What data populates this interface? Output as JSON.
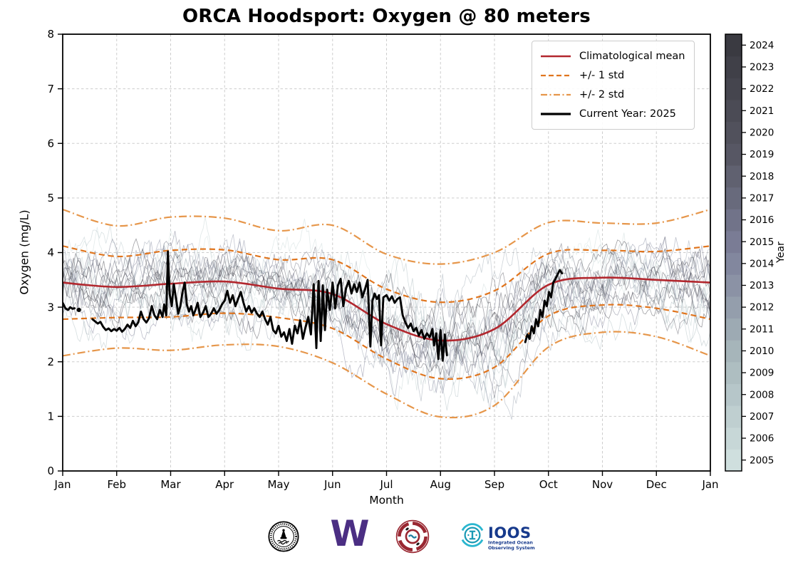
{
  "chart_data": {
    "type": "line",
    "title": "ORCA Hoodsport: Oxygen @ 80 meters",
    "xlabel": "Month",
    "ylabel": "Oxygen (mg/L)",
    "ylim": [
      0,
      8
    ],
    "yticks": [
      0,
      1,
      2,
      3,
      4,
      5,
      6,
      7,
      8
    ],
    "xtick_labels": [
      "Jan",
      "Feb",
      "Mar",
      "Apr",
      "May",
      "Jun",
      "Jul",
      "Aug",
      "Sep",
      "Oct",
      "Nov",
      "Dec",
      "Jan"
    ],
    "grid": true,
    "legend_entries": [
      {
        "label": "Climatological mean",
        "style": "solid",
        "color": "#B2272E",
        "width": 2.6
      },
      {
        "label": "+/- 1 std",
        "style": "dashed",
        "color": "#E0751E",
        "width": 2.2
      },
      {
        "label": "+/- 2 std",
        "style": "dashdot",
        "color": "#E6964A",
        "width": 2.2
      },
      {
        "label": "Current Year: 2025",
        "style": "solid",
        "color": "#000000",
        "width": 3.2
      }
    ],
    "climatology": {
      "months": [
        0,
        1,
        2,
        3,
        4,
        5,
        6,
        7,
        8,
        9,
        10,
        11,
        12
      ],
      "mean": [
        3.45,
        3.37,
        3.43,
        3.47,
        3.34,
        3.24,
        2.69,
        2.39,
        2.6,
        3.41,
        3.54,
        3.5,
        3.45
      ],
      "std": [
        0.67,
        0.56,
        0.61,
        0.58,
        0.53,
        0.63,
        0.64,
        0.7,
        0.7,
        0.57,
        0.5,
        0.52,
        0.67
      ]
    },
    "current_year": {
      "label": "Current Year: 2025",
      "color": "#000000",
      "isolated_points": [
        [
          0.3,
          2.95
        ]
      ],
      "segments": [
        [
          [
            0.0,
            3.08
          ],
          [
            0.05,
            2.98
          ],
          [
            0.1,
            2.95
          ],
          [
            0.14,
            3.0
          ],
          [
            0.18,
            2.97
          ],
          [
            0.22,
            2.98
          ]
        ],
        [
          [
            0.55,
            2.78
          ],
          [
            0.6,
            2.74
          ],
          [
            0.65,
            2.7
          ],
          [
            0.7,
            2.73
          ],
          [
            0.75,
            2.64
          ],
          [
            0.8,
            2.58
          ],
          [
            0.85,
            2.61
          ],
          [
            0.9,
            2.56
          ],
          [
            0.95,
            2.6
          ],
          [
            1.0,
            2.57
          ],
          [
            1.05,
            2.62
          ],
          [
            1.1,
            2.55
          ],
          [
            1.15,
            2.6
          ],
          [
            1.2,
            2.68
          ],
          [
            1.25,
            2.62
          ],
          [
            1.3,
            2.75
          ],
          [
            1.35,
            2.65
          ],
          [
            1.4,
            2.72
          ],
          [
            1.45,
            2.92
          ],
          [
            1.5,
            2.78
          ],
          [
            1.55,
            2.72
          ],
          [
            1.6,
            2.8
          ],
          [
            1.65,
            3.02
          ],
          [
            1.7,
            2.85
          ],
          [
            1.75,
            2.78
          ],
          [
            1.8,
            2.95
          ],
          [
            1.85,
            2.82
          ],
          [
            1.88,
            3.05
          ],
          [
            1.92,
            2.85
          ],
          [
            1.95,
            4.02
          ],
          [
            1.98,
            3.25
          ],
          [
            2.02,
            3.02
          ],
          [
            2.06,
            3.42
          ],
          [
            2.1,
            3.15
          ],
          [
            2.14,
            2.88
          ],
          [
            2.18,
            3.02
          ],
          [
            2.22,
            3.28
          ],
          [
            2.26,
            3.45
          ],
          [
            2.3,
            3.05
          ],
          [
            2.34,
            2.92
          ],
          [
            2.38,
            3.02
          ],
          [
            2.42,
            2.85
          ],
          [
            2.46,
            2.95
          ],
          [
            2.5,
            3.08
          ],
          [
            2.55,
            2.82
          ],
          [
            2.6,
            2.9
          ],
          [
            2.65,
            3.02
          ],
          [
            2.7,
            2.82
          ],
          [
            2.75,
            2.88
          ],
          [
            2.8,
            2.98
          ],
          [
            2.85,
            2.88
          ],
          [
            2.9,
            2.95
          ],
          [
            2.95,
            3.05
          ],
          [
            3.0,
            3.12
          ],
          [
            3.05,
            3.3
          ],
          [
            3.1,
            3.08
          ],
          [
            3.15,
            3.22
          ],
          [
            3.2,
            3.02
          ],
          [
            3.25,
            3.15
          ],
          [
            3.3,
            3.28
          ],
          [
            3.35,
            3.08
          ],
          [
            3.4,
            2.92
          ],
          [
            3.45,
            3.02
          ],
          [
            3.5,
            2.9
          ],
          [
            3.55,
            2.98
          ],
          [
            3.6,
            2.88
          ],
          [
            3.65,
            2.82
          ],
          [
            3.7,
            2.92
          ],
          [
            3.75,
            2.78
          ],
          [
            3.8,
            2.68
          ],
          [
            3.85,
            2.82
          ],
          [
            3.9,
            2.58
          ],
          [
            3.95,
            2.52
          ],
          [
            4.0,
            2.66
          ],
          [
            4.05,
            2.46
          ],
          [
            4.1,
            2.54
          ],
          [
            4.15,
            2.38
          ],
          [
            4.2,
            2.6
          ],
          [
            4.25,
            2.33
          ],
          [
            4.3,
            2.66
          ],
          [
            4.35,
            2.52
          ],
          [
            4.4,
            2.76
          ],
          [
            4.45,
            2.42
          ],
          [
            4.5,
            2.64
          ],
          [
            4.55,
            2.82
          ],
          [
            4.6,
            2.5
          ],
          [
            4.65,
            3.42
          ],
          [
            4.7,
            2.25
          ],
          [
            4.74,
            3.48
          ],
          [
            4.78,
            2.38
          ],
          [
            4.82,
            3.4
          ],
          [
            4.86,
            2.58
          ],
          [
            4.9,
            3.32
          ],
          [
            4.95,
            2.95
          ],
          [
            5.0,
            3.45
          ],
          [
            5.05,
            2.98
          ],
          [
            5.1,
            3.4
          ],
          [
            5.15,
            3.52
          ],
          [
            5.2,
            3.02
          ],
          [
            5.25,
            3.35
          ],
          [
            5.3,
            3.48
          ],
          [
            5.35,
            3.25
          ],
          [
            5.4,
            3.42
          ],
          [
            5.45,
            3.28
          ],
          [
            5.5,
            3.45
          ],
          [
            5.55,
            3.18
          ],
          [
            5.6,
            3.32
          ],
          [
            5.65,
            3.5
          ],
          [
            5.7,
            2.28
          ],
          [
            5.74,
            3.12
          ],
          [
            5.78,
            3.25
          ],
          [
            5.82,
            3.15
          ],
          [
            5.86,
            3.22
          ],
          [
            5.9,
            2.3
          ],
          [
            5.94,
            3.18
          ],
          [
            6.0,
            3.22
          ],
          [
            6.05,
            3.12
          ],
          [
            6.1,
            3.2
          ],
          [
            6.15,
            3.08
          ],
          [
            6.2,
            3.15
          ],
          [
            6.25,
            3.18
          ],
          [
            6.3,
            2.85
          ],
          [
            6.35,
            2.72
          ],
          [
            6.4,
            2.62
          ],
          [
            6.45,
            2.7
          ],
          [
            6.5,
            2.56
          ],
          [
            6.55,
            2.62
          ],
          [
            6.6,
            2.48
          ],
          [
            6.65,
            2.58
          ],
          [
            6.7,
            2.42
          ],
          [
            6.75,
            2.52
          ],
          [
            6.8,
            2.45
          ],
          [
            6.85,
            2.6
          ],
          [
            6.88,
            2.3
          ],
          [
            6.92,
            2.52
          ],
          [
            6.96,
            2.05
          ],
          [
            7.0,
            2.58
          ],
          [
            7.04,
            2.02
          ],
          [
            7.08,
            2.5
          ],
          [
            7.12,
            2.12
          ]
        ],
        [
          [
            8.57,
            2.36
          ],
          [
            8.61,
            2.5
          ],
          [
            8.65,
            2.42
          ],
          [
            8.69,
            2.65
          ],
          [
            8.73,
            2.52
          ],
          [
            8.77,
            2.78
          ],
          [
            8.81,
            2.65
          ],
          [
            8.85,
            2.95
          ],
          [
            8.89,
            2.82
          ],
          [
            8.93,
            3.12
          ],
          [
            8.97,
            3.02
          ],
          [
            9.01,
            3.28
          ],
          [
            9.05,
            3.18
          ],
          [
            9.09,
            3.45
          ],
          [
            9.13,
            3.52
          ],
          [
            9.17,
            3.6
          ],
          [
            9.21,
            3.68
          ],
          [
            9.25,
            3.62
          ]
        ]
      ]
    },
    "background_years": {
      "first": 2005,
      "last": 2024
    },
    "colorbar": {
      "label": "Year",
      "years": [
        2005,
        2006,
        2007,
        2008,
        2009,
        2010,
        2011,
        2012,
        2013,
        2014,
        2015,
        2016,
        2017,
        2018,
        2019,
        2020,
        2021,
        2022,
        2023,
        2024
      ],
      "color_stops": [
        "#cfdfde",
        "#a8b8bc",
        "#7e819b",
        "#555561",
        "#3a3a41"
      ]
    }
  },
  "footer": {
    "logos": [
      {
        "name": "orca-buoy-logo"
      },
      {
        "name": "uw-logo",
        "text": "W"
      },
      {
        "name": "tribal-salmon-logo"
      },
      {
        "name": "ioos-logo",
        "text": "IOOS",
        "sub1": "Integrated  Ocean",
        "sub2": "Observing System"
      }
    ]
  }
}
